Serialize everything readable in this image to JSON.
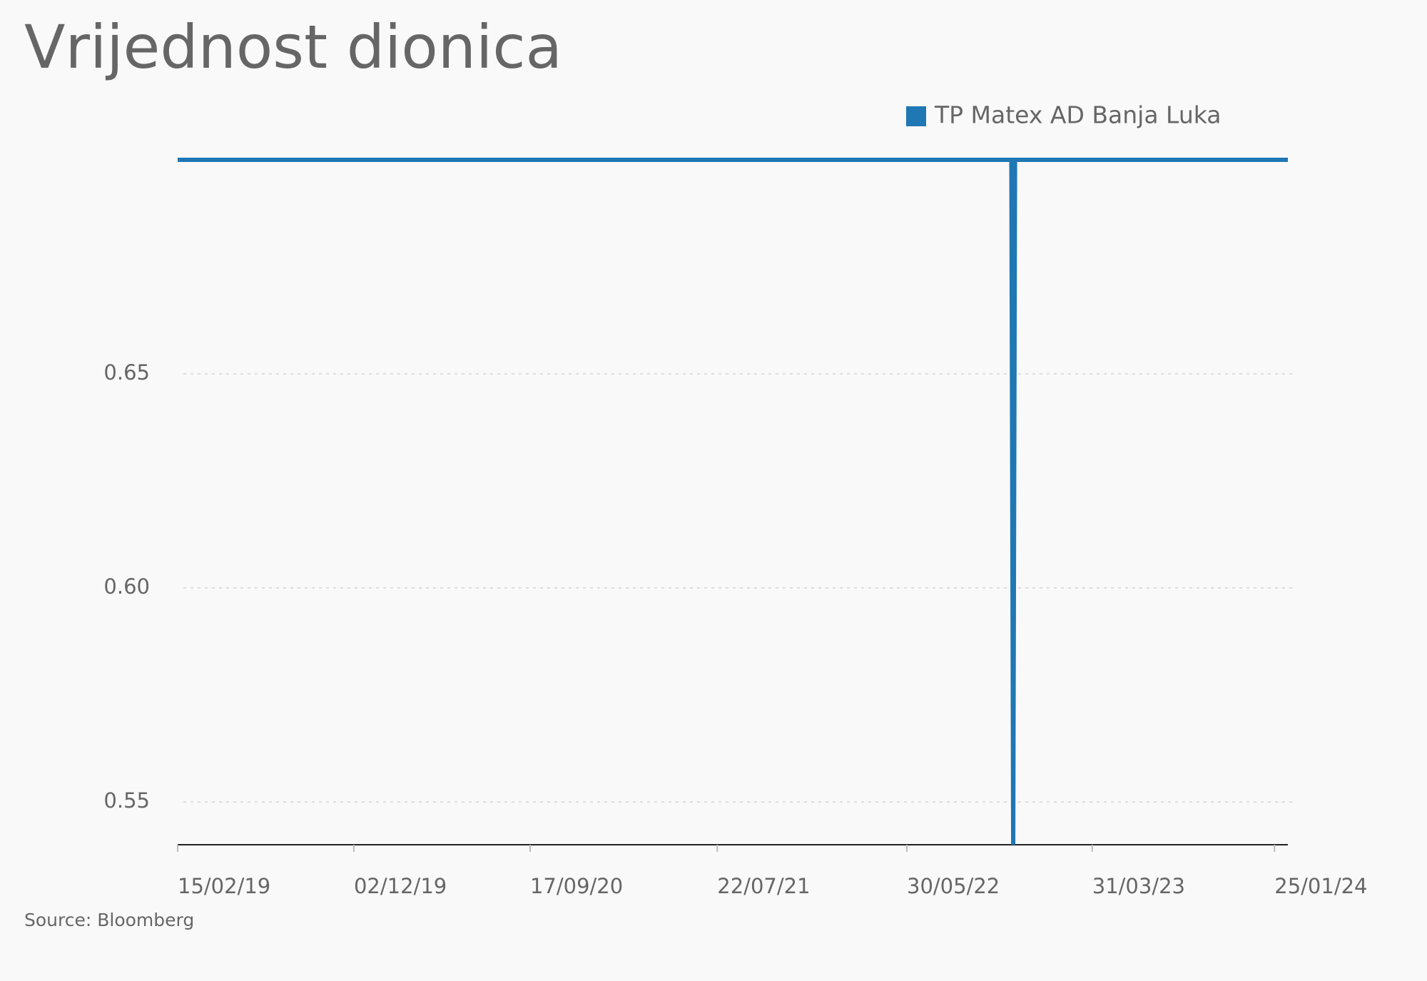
{
  "chart_data": {
    "type": "line",
    "title": "Vrijednost dionica",
    "source": "Source: Bloomberg",
    "x": [
      "2019-02-15",
      "2022-11-18",
      "2022-11-21",
      "2022-11-24",
      "2024-02-16"
    ],
    "series": [
      {
        "name": "TP Matex AD Banja Luka",
        "color": "#1f77b4",
        "values": [
          0.7,
          0.7,
          0.54,
          0.7,
          0.7
        ]
      }
    ],
    "xlim": [
      "2019-02-15",
      "2024-02-16"
    ],
    "xticks": [
      {
        "value": "2019-02-15",
        "label": "15/02/19"
      },
      {
        "value": "2019-12-02",
        "label": "02/12/19"
      },
      {
        "value": "2020-09-17",
        "label": "17/09/20"
      },
      {
        "value": "2021-07-22",
        "label": "22/07/21"
      },
      {
        "value": "2022-05-30",
        "label": "30/05/22"
      },
      {
        "value": "2023-03-31",
        "label": "31/03/23"
      },
      {
        "value": "2024-01-25",
        "label": "25/01/24"
      }
    ],
    "ylim": [
      0.54,
      0.7
    ],
    "yticks": [
      0.55,
      {
        "value": 0.6,
        "label": "0.60"
      },
      0.65
    ],
    "grid": true,
    "legend": "top-right"
  }
}
